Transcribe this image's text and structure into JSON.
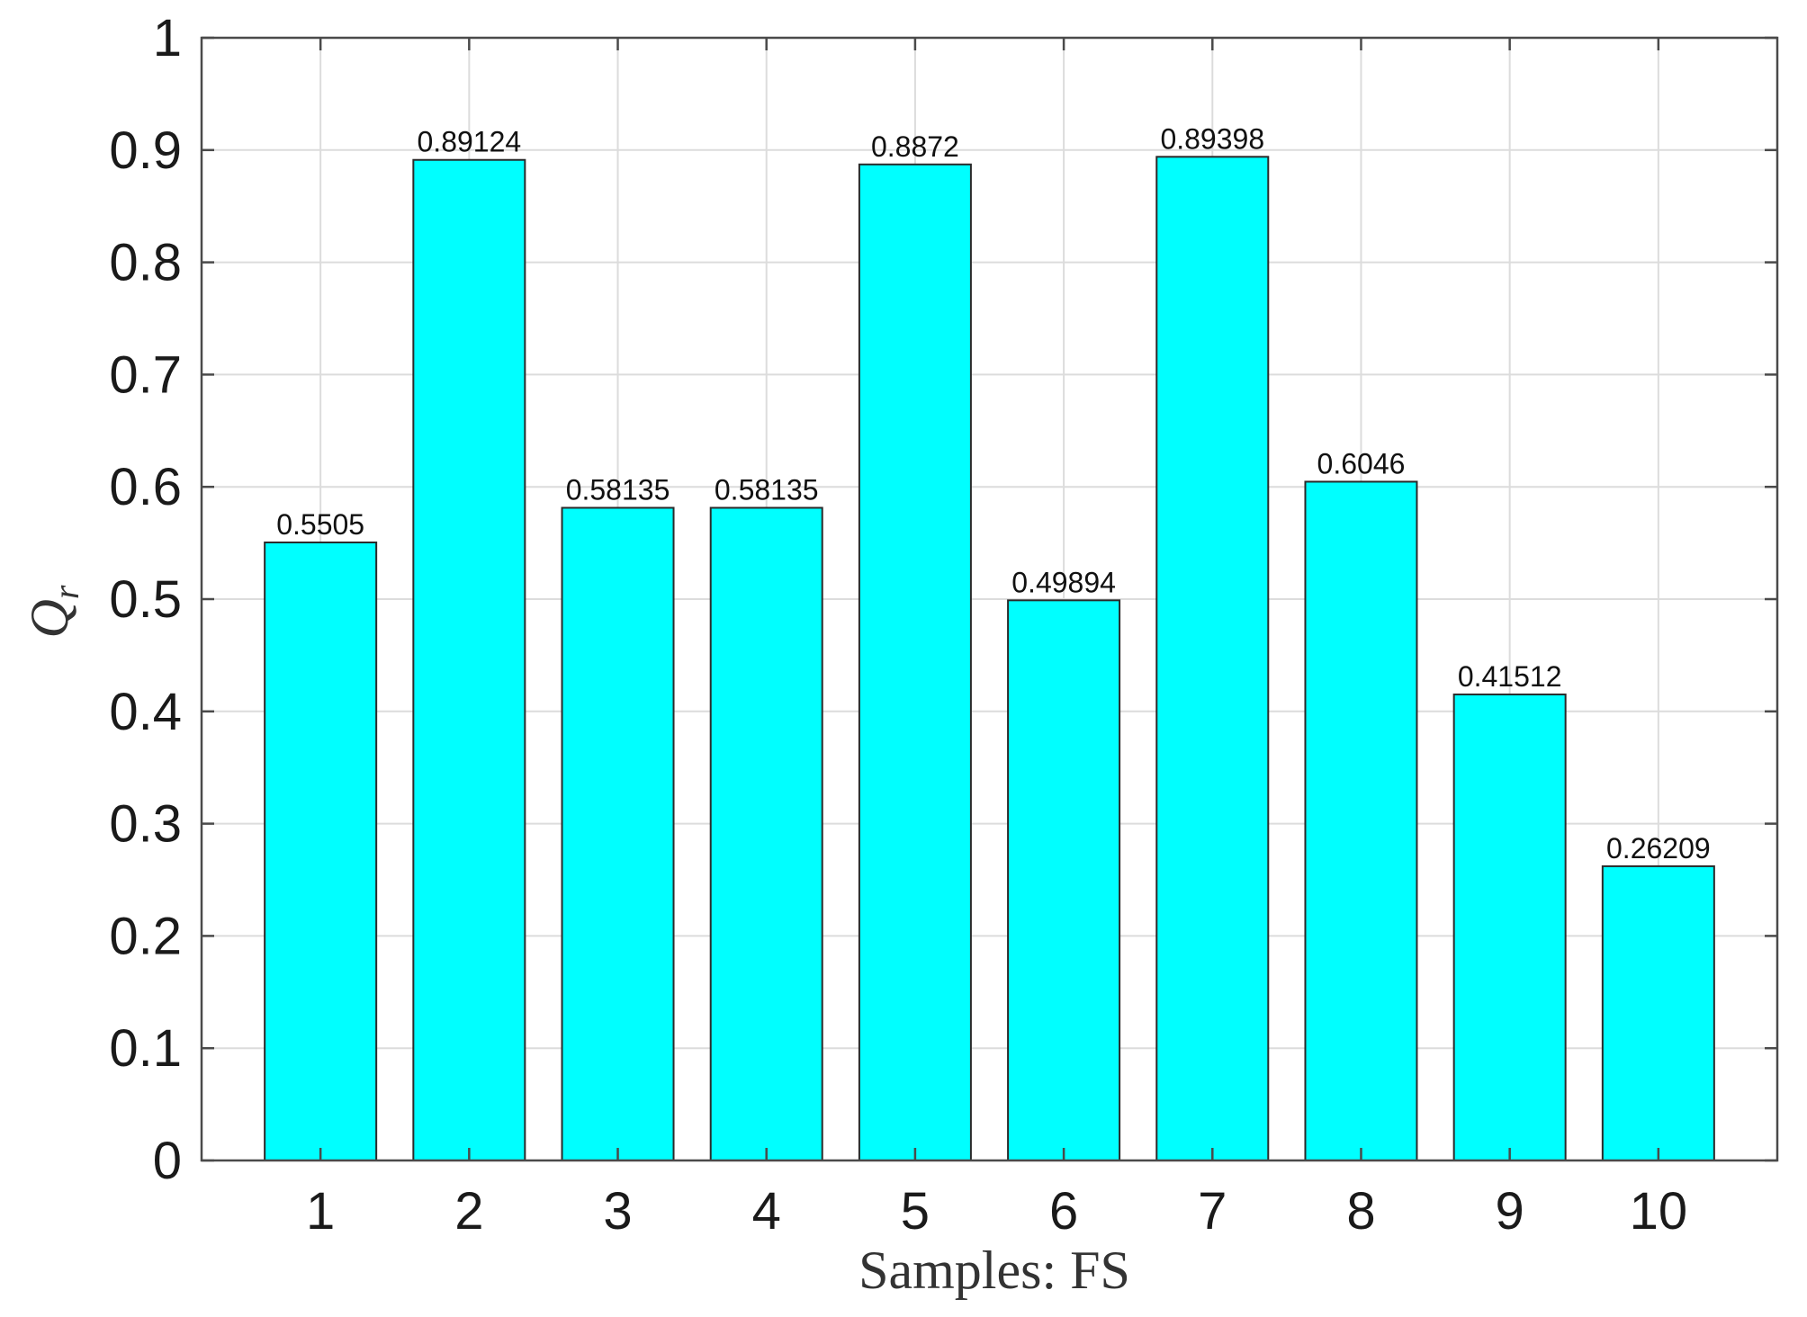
{
  "chart_data": {
    "type": "bar",
    "categories": [
      "1",
      "2",
      "3",
      "4",
      "5",
      "6",
      "7",
      "8",
      "9",
      "10"
    ],
    "values": [
      0.5505,
      0.89124,
      0.58135,
      0.58135,
      0.8872,
      0.49894,
      0.89398,
      0.6046,
      0.41512,
      0.26209
    ],
    "value_labels": [
      "0.5505",
      "0.89124",
      "0.58135",
      "0.58135",
      "0.8872",
      "0.49894",
      "0.89398",
      "0.6046",
      "0.41512",
      "0.26209"
    ],
    "title": "",
    "xlabel": "Samples:  FS",
    "ylabel": "Q",
    "ylabel_subscript": "r",
    "ylim": [
      0,
      1
    ],
    "xlim": [
      0.2,
      10.8
    ],
    "yticks": [
      "0",
      "0.1",
      "0.2",
      "0.3",
      "0.4",
      "0.5",
      "0.6",
      "0.7",
      "0.8",
      "0.9",
      "1"
    ],
    "grid": true,
    "legend": "none",
    "bar_color": "#00FFFF",
    "bar_edge_color": "#2a2a2a"
  }
}
